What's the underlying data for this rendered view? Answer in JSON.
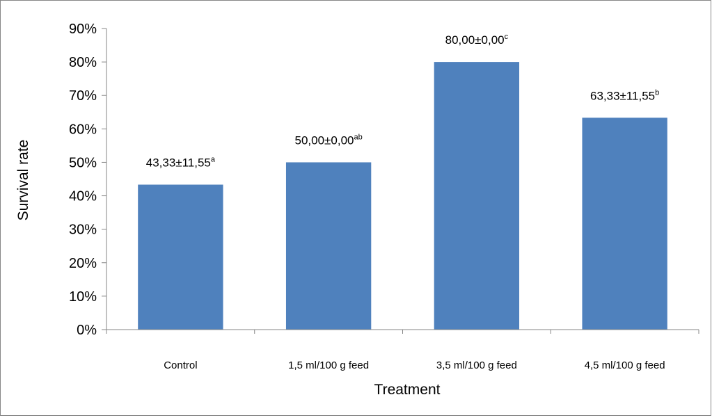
{
  "chart_data": {
    "type": "bar",
    "title": "",
    "xlabel": "Treatment",
    "ylabel": "Survival rate",
    "ylim": [
      0,
      90
    ],
    "y_unit": "%",
    "y_ticks": [
      "0%",
      "10%",
      "20%",
      "30%",
      "40%",
      "50%",
      "60%",
      "70%",
      "80%",
      "90%"
    ],
    "grid": false,
    "legend": "none",
    "categories": [
      "Control",
      "1,5 ml/100 g feed",
      "3,5 ml/100 g feed",
      "4,5 ml/100 g feed"
    ],
    "values": [
      43.33,
      50.0,
      80.0,
      63.33
    ],
    "data_labels": [
      {
        "text": "43,33±11,55",
        "sup": "a"
      },
      {
        "text": "50,00±0,00",
        "sup": "ab"
      },
      {
        "text": "80,00±0,00",
        "sup": "c"
      },
      {
        "text": "63,33±11,55",
        "sup": "b"
      }
    ],
    "colors": {
      "bar": "#4f81bd",
      "axis": "#868686",
      "frame": "#868686"
    }
  }
}
